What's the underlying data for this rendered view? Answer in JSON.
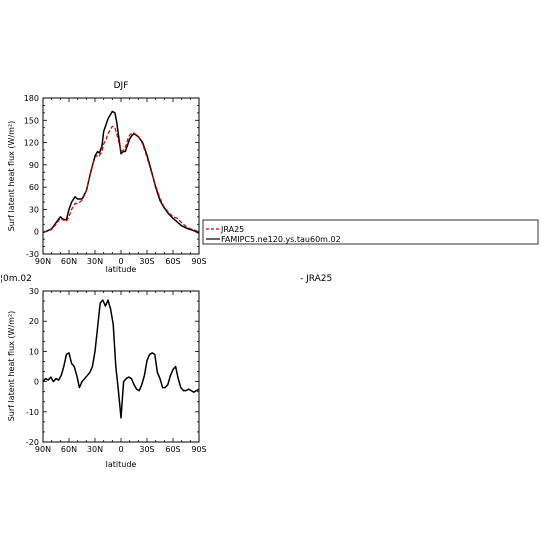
{
  "chart_data": [
    {
      "type": "line",
      "title": "DJF",
      "xlabel": "latitude",
      "ylabel": "Surf latent heat flux (W/m²)",
      "xlim": [
        90,
        -90
      ],
      "ylim": [
        -30,
        180
      ],
      "xticks": [
        90,
        60,
        30,
        0,
        -30,
        -60,
        -90
      ],
      "xtick_labels": [
        "90N",
        "60N",
        "30N",
        "0",
        "30S",
        "60S",
        "90S"
      ],
      "yticks": [
        -30,
        0,
        30,
        60,
        90,
        120,
        150,
        180
      ],
      "ytick_labels": [
        "-30",
        "0",
        "30",
        "60",
        "90",
        "120",
        "150",
        "180"
      ],
      "series": [
        {
          "name": "JRA25",
          "color": "#cc0000",
          "dash": "dashed",
          "x": [
            90,
            85,
            80,
            75,
            70,
            67,
            63,
            60,
            57,
            53,
            50,
            45,
            40,
            35,
            30,
            27,
            25,
            22,
            20,
            17,
            15,
            12,
            10,
            7,
            5,
            2,
            0,
            -3,
            -5,
            -8,
            -10,
            -13,
            -15,
            -20,
            -25,
            -30,
            -35,
            -40,
            -45,
            -50,
            -55,
            -60,
            -65,
            -70,
            -75,
            -80,
            -85,
            -90
          ],
          "y": [
            0,
            1,
            3,
            10,
            18,
            16,
            14,
            20,
            30,
            38,
            38,
            42,
            55,
            80,
            100,
            103,
            102,
            108,
            118,
            125,
            132,
            138,
            142,
            140,
            132,
            118,
            108,
            110,
            113,
            125,
            130,
            133,
            133,
            128,
            118,
            100,
            80,
            62,
            45,
            33,
            26,
            20,
            18,
            12,
            7,
            4,
            2,
            0
          ]
        },
        {
          "name": "FAMIPC5.ne120.ys.tau60m.02",
          "color": "#000000",
          "dash": "solid",
          "x": [
            90,
            85,
            80,
            75,
            70,
            67,
            63,
            60,
            57,
            53,
            50,
            45,
            40,
            35,
            30,
            27,
            25,
            22,
            20,
            17,
            15,
            12,
            10,
            7,
            5,
            2,
            0,
            -3,
            -5,
            -8,
            -10,
            -13,
            -15,
            -20,
            -25,
            -30,
            -35,
            -40,
            -45,
            -50,
            -55,
            -60,
            -65,
            -70,
            -75,
            -80,
            -85,
            -90
          ],
          "y": [
            -1,
            1,
            4,
            12,
            20,
            17,
            16,
            30,
            40,
            47,
            44,
            44,
            55,
            80,
            102,
            108,
            106,
            115,
            135,
            145,
            152,
            158,
            162,
            160,
            148,
            122,
            105,
            108,
            108,
            118,
            125,
            130,
            132,
            128,
            120,
            103,
            82,
            60,
            42,
            32,
            24,
            18,
            13,
            8,
            5,
            3,
            1,
            -2
          ]
        }
      ],
      "legend_position": "right"
    },
    {
      "type": "line",
      "title_fragment": "¦0m.02",
      "title_right": "- JRA25",
      "xlabel": "latitude",
      "ylabel": "Surf latent heat flux (W/m²)",
      "xlim": [
        90,
        -90
      ],
      "ylim": [
        -20,
        30
      ],
      "xticks": [
        90,
        60,
        30,
        0,
        -30,
        -60,
        -90
      ],
      "xtick_labels": [
        "90N",
        "60N",
        "30N",
        "0",
        "30S",
        "60S",
        "90S"
      ],
      "yticks": [
        -20,
        -10,
        0,
        10,
        20,
        30
      ],
      "ytick_labels": [
        "-20",
        "-10",
        "0",
        "10",
        "20",
        "30"
      ],
      "series": [
        {
          "color": "#000000",
          "dash": "solid",
          "x": [
            90,
            87,
            84,
            81,
            78,
            75,
            72,
            69,
            66,
            63,
            60,
            57,
            54,
            51,
            48,
            45,
            42,
            39,
            36,
            33,
            30,
            27,
            24,
            21,
            18,
            15,
            12,
            9,
            6,
            3,
            0,
            -3,
            -6,
            -9,
            -12,
            -15,
            -18,
            -21,
            -24,
            -27,
            -30,
            -33,
            -36,
            -39,
            -42,
            -45,
            -48,
            -51,
            -54,
            -57,
            -60,
            -63,
            -66,
            -69,
            -72,
            -75,
            -78,
            -81,
            -84,
            -87,
            -90
          ],
          "y": [
            0,
            1,
            0.5,
            1.5,
            0,
            1,
            0.5,
            2,
            5,
            9,
            9.5,
            6,
            5,
            2,
            -2,
            0,
            1,
            2,
            3,
            5,
            10,
            18,
            26,
            27,
            25,
            27,
            24,
            19,
            5,
            -3,
            -12,
            0,
            1,
            1.5,
            1,
            -1,
            -2.5,
            -3,
            -1,
            2,
            7,
            9,
            9.5,
            9,
            3,
            1,
            -2,
            -2,
            -1,
            2,
            4,
            5,
            1,
            -2,
            -3,
            -3,
            -2.5,
            -3,
            -3.5,
            -3,
            -2.5
          ]
        }
      ]
    }
  ]
}
